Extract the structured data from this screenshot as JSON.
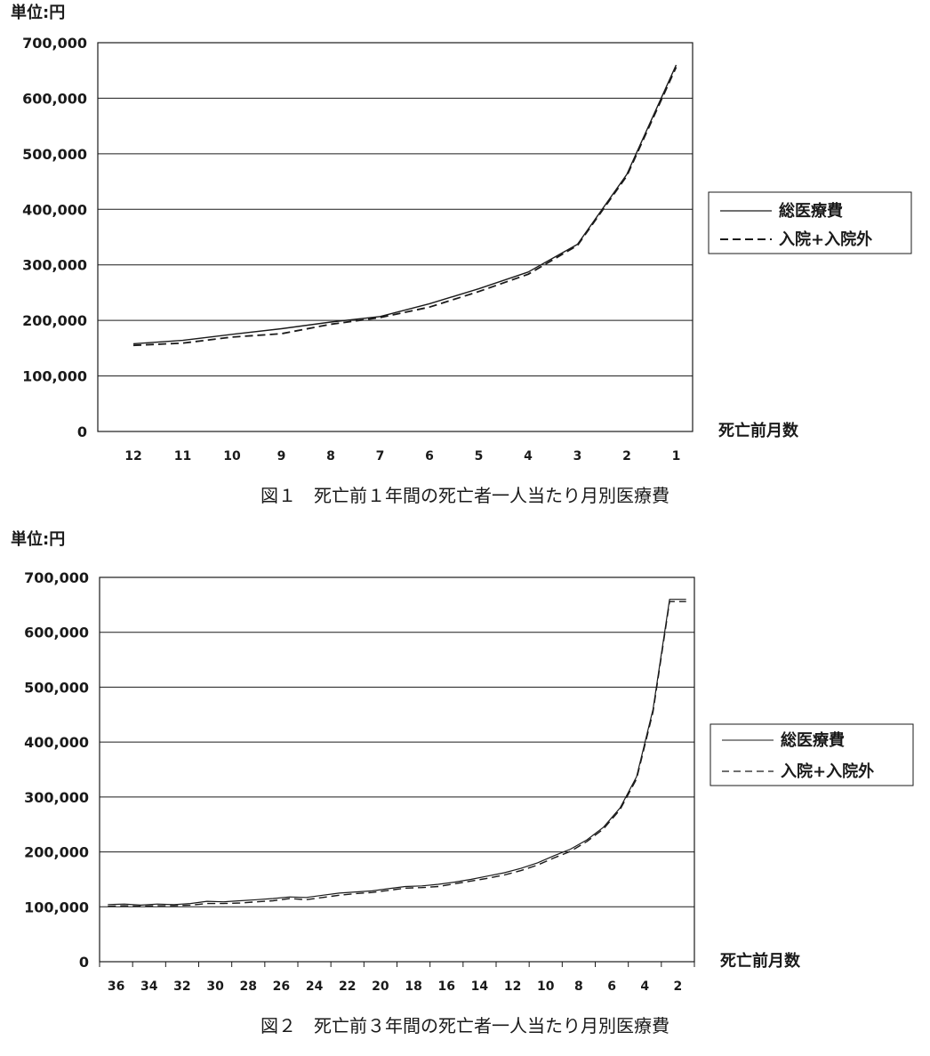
{
  "chart_data": [
    {
      "type": "line",
      "unit_label": "単位:円",
      "xlabel": "死亡前月数",
      "caption": "図１　死亡前１年間の死亡者一人当たり月別医療費",
      "ylim": [
        0,
        700000
      ],
      "y_ticks": [
        "700,000",
        "600,000",
        "500,000",
        "400,000",
        "300,000",
        "200,000",
        "100,000",
        "0"
      ],
      "y_tick_values": [
        700000,
        600000,
        500000,
        400000,
        300000,
        200000,
        100000,
        0
      ],
      "categories": [
        "12",
        "11",
        "10",
        "9",
        "8",
        "7",
        "6",
        "5",
        "4",
        "3",
        "2",
        "1"
      ],
      "grid": true,
      "legend_position": "right",
      "series": [
        {
          "name": "総医療費",
          "style": "solid",
          "values": [
            158000,
            164000,
            175000,
            185000,
            197000,
            207000,
            230000,
            257000,
            287000,
            337000,
            463000,
            660000
          ]
        },
        {
          "name": "入院+入院外",
          "style": "dashed",
          "values": [
            155000,
            159000,
            170000,
            176000,
            193000,
            205000,
            224000,
            252000,
            283000,
            335000,
            460000,
            656000
          ]
        }
      ]
    },
    {
      "type": "line",
      "unit_label": "単位:円",
      "xlabel": "死亡前月数",
      "caption": "図２　死亡前３年間の死亡者一人当たり月別医療費",
      "ylim": [
        0,
        700000
      ],
      "y_ticks": [
        "700,000",
        "600,000",
        "500,000",
        "400,000",
        "300,000",
        "200,000",
        "100,000",
        "0"
      ],
      "y_tick_values": [
        700000,
        600000,
        500000,
        400000,
        300000,
        200000,
        100000,
        0
      ],
      "x_tick_labels": [
        "36",
        "34",
        "32",
        "30",
        "28",
        "26",
        "24",
        "22",
        "20",
        "18",
        "16",
        "14",
        "12",
        "10",
        "8",
        "6",
        "4",
        "2"
      ],
      "x": [
        36,
        35,
        34,
        33,
        32,
        31,
        30,
        29,
        28,
        27,
        26,
        25,
        24,
        23,
        22,
        21,
        20,
        19,
        18,
        17,
        16,
        15,
        14,
        13,
        12,
        11,
        10,
        9,
        8,
        7,
        6,
        5,
        4,
        3,
        2,
        1
      ],
      "grid": true,
      "legend_position": "right",
      "series": [
        {
          "name": "総医療費",
          "style": "solid",
          "values": [
            104000,
            105000,
            103000,
            105000,
            104000,
            106000,
            110000,
            109000,
            111000,
            113000,
            115000,
            118000,
            117000,
            121000,
            125000,
            127000,
            129000,
            133000,
            137000,
            138000,
            141000,
            145000,
            150000,
            156000,
            162000,
            170000,
            180000,
            193000,
            205000,
            222000,
            245000,
            280000,
            337000,
            460000,
            660000,
            660000
          ]
        },
        {
          "name": "入院+入院外",
          "style": "dashed",
          "values": [
            101000,
            102000,
            101000,
            102000,
            102000,
            103000,
            106000,
            106000,
            107000,
            109000,
            111000,
            115000,
            113000,
            117000,
            121000,
            124000,
            126000,
            130000,
            134000,
            135000,
            137000,
            142000,
            147000,
            152000,
            158000,
            166000,
            176000,
            189000,
            201000,
            219000,
            242000,
            277000,
            333000,
            455000,
            656000,
            656000
          ]
        }
      ]
    }
  ]
}
